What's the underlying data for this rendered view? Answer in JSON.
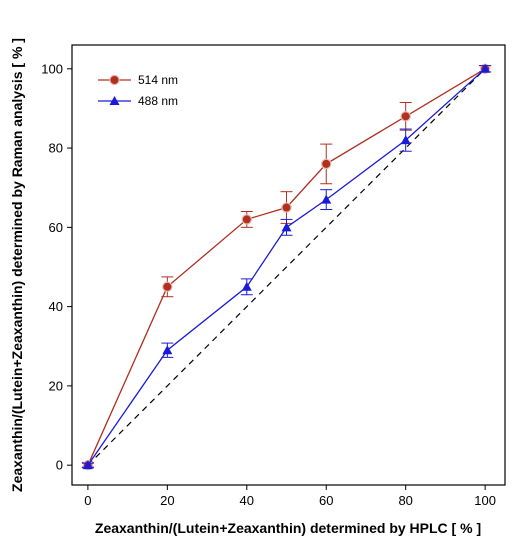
{
  "chart_data": {
    "type": "line",
    "xlabel": "Zeaxanthin/(Lutein+Zeaxanthin) determined by HPLC [ % ]",
    "ylabel": "Zeaxanthin/(Lutein+Zeaxanthin) determined by Raman analysis [ % ]",
    "xlim": [
      -4,
      105
    ],
    "ylim": [
      -5,
      106
    ],
    "xticks": [
      0,
      20,
      40,
      60,
      80,
      100
    ],
    "yticks": [
      0,
      20,
      40,
      60,
      80,
      100
    ],
    "grid": false,
    "legend_position": "top-left",
    "reference_line": {
      "style": "dashed",
      "color": "#000000",
      "from": [
        0,
        0
      ],
      "to": [
        100,
        100
      ]
    },
    "series": [
      {
        "name": "514 nm",
        "color": "#b03020",
        "marker": "circle",
        "x": [
          0,
          20,
          40,
          50,
          60,
          80,
          100
        ],
        "y": [
          0,
          45,
          62,
          65,
          76,
          88,
          100
        ],
        "err": [
          0.7,
          2.5,
          2.0,
          4.0,
          5.0,
          3.5,
          0.8
        ]
      },
      {
        "name": "488 nm",
        "color": "#1a1adb",
        "marker": "triangle",
        "x": [
          0,
          20,
          40,
          50,
          60,
          80,
          100
        ],
        "y": [
          0,
          29,
          45,
          60,
          67,
          82,
          100
        ],
        "err": [
          0.5,
          1.8,
          2.0,
          2.0,
          2.5,
          2.8,
          0.8
        ]
      }
    ]
  }
}
